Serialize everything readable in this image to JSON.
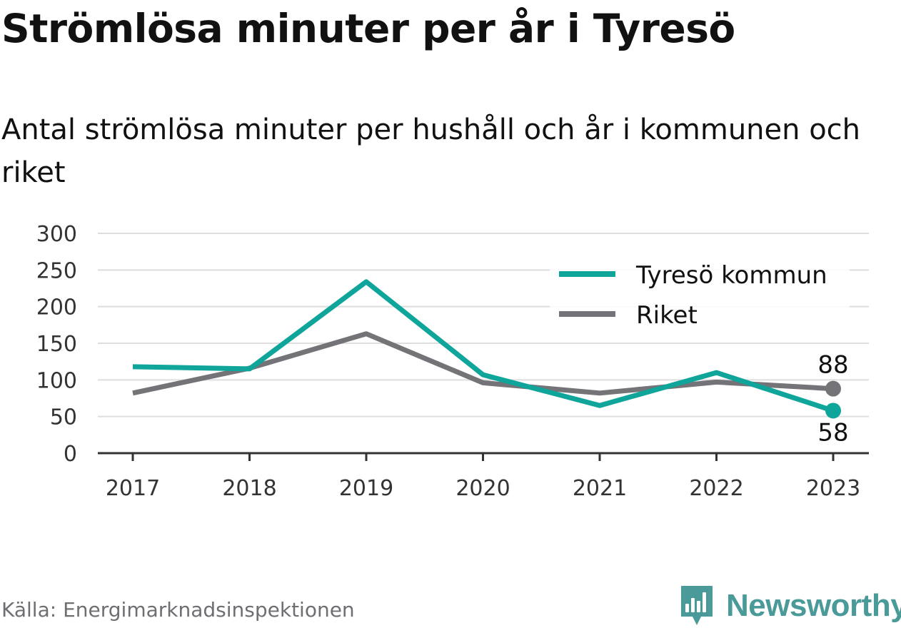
{
  "title": "Strömlösa minuter per år i Tyresö",
  "subtitle": "Antal strömlösa minuter per hushåll och år i kommunen och riket",
  "source": "Källa: Energimarknadsinspektionen",
  "brand": {
    "name": "Newsworthy",
    "icon": "newsworthy-logo-icon",
    "color": "#4a9a99"
  },
  "chart_data": {
    "type": "line",
    "x": [
      "2017",
      "2018",
      "2019",
      "2020",
      "2021",
      "2022",
      "2023"
    ],
    "ylim": [
      0,
      300
    ],
    "yticks": [
      0,
      50,
      100,
      150,
      200,
      250,
      300
    ],
    "grid": true,
    "legend_position": "top-right",
    "series": [
      {
        "name": "Tyresö kommun",
        "color": "#0fa59b",
        "values": [
          118,
          115,
          234,
          107,
          65,
          110,
          58
        ]
      },
      {
        "name": "Riket",
        "color": "#737378",
        "values": [
          82,
          116,
          163,
          96,
          82,
          97,
          88
        ]
      }
    ],
    "annotations": [
      {
        "series": "Riket",
        "x": "2023",
        "label": "88",
        "position": "above"
      },
      {
        "series": "Tyresö kommun",
        "x": "2023",
        "label": "58",
        "position": "below"
      }
    ]
  }
}
